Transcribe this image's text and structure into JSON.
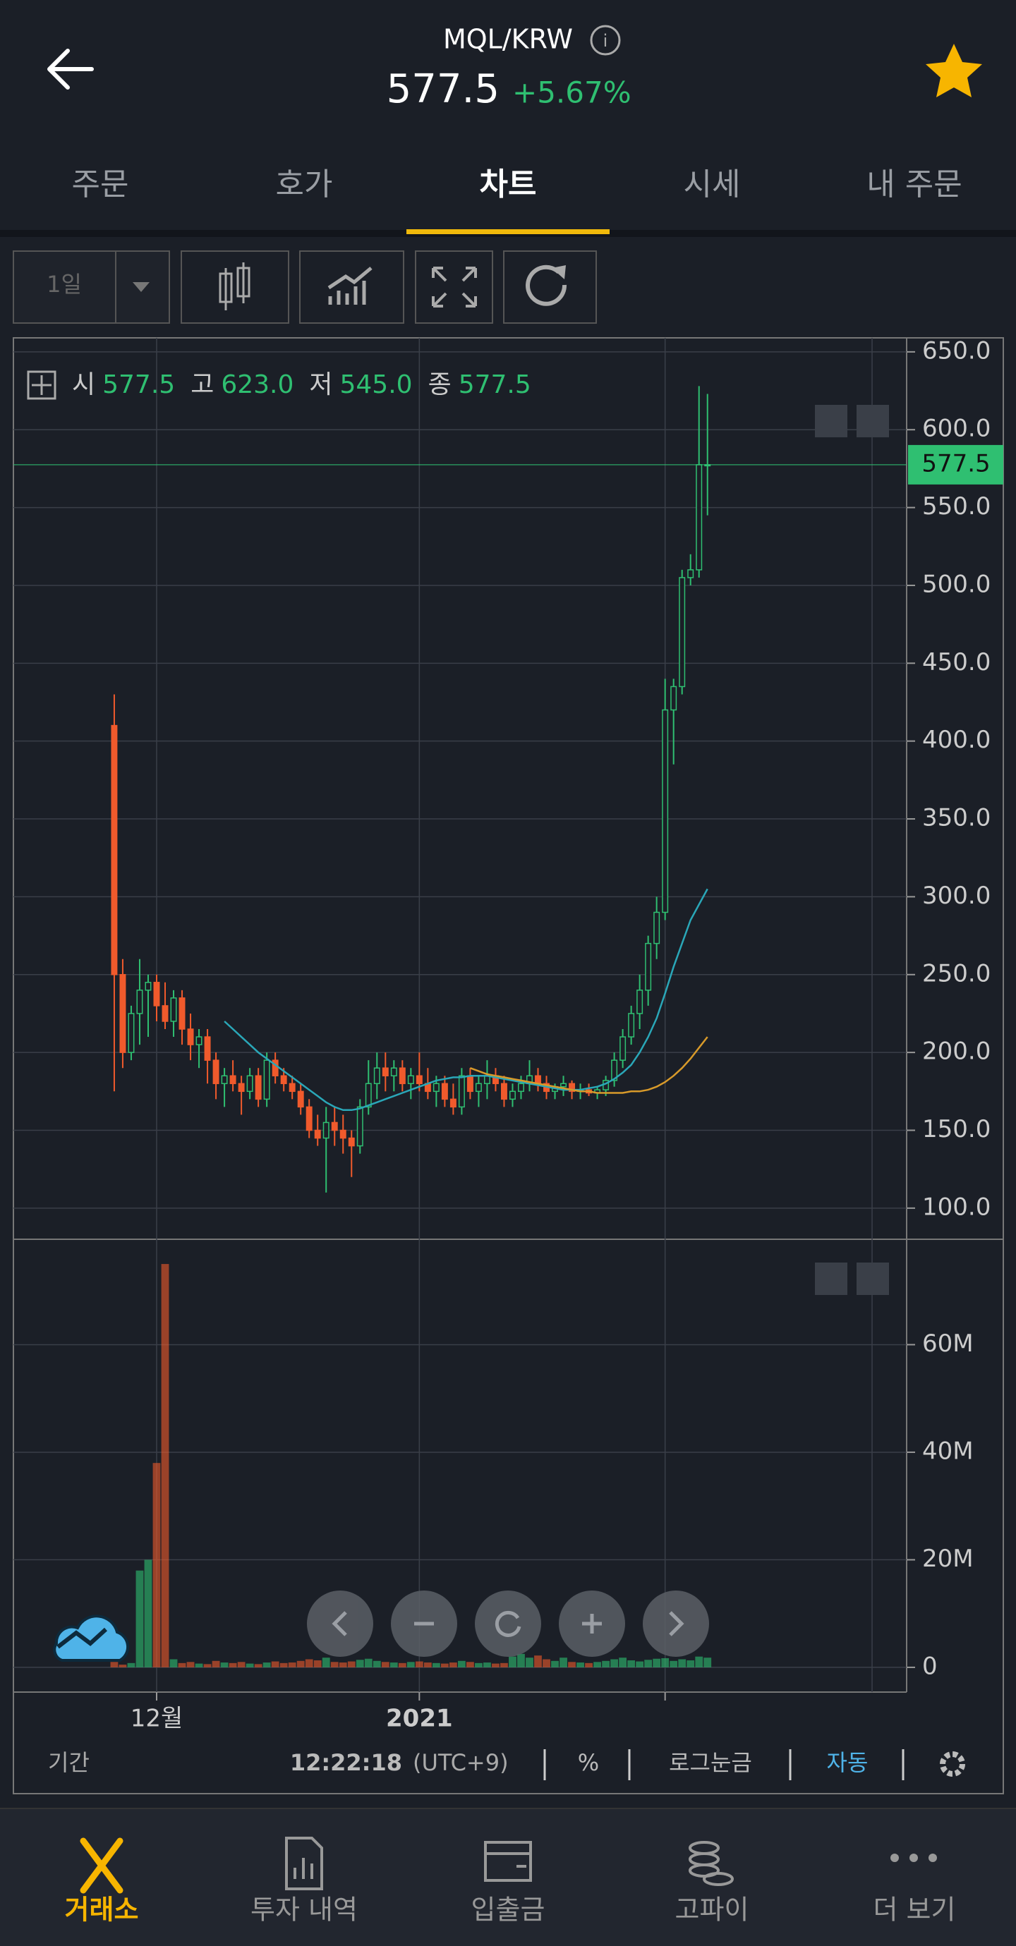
{
  "header": {
    "pair": "MQL/KRW",
    "price": "577.5",
    "change": "+5.67%"
  },
  "tabs": [
    "주문",
    "호가",
    "차트",
    "시세",
    "내 주문"
  ],
  "active_tab": 2,
  "toolbar": {
    "interval": "1일"
  },
  "chart_data": {
    "type": "candlestick",
    "info_labels": [
      "시",
      "고",
      "저",
      "종"
    ],
    "info_values": [
      "577.5",
      "623.0",
      "545.0",
      "577.5"
    ],
    "categories": [
      null,
      null,
      null,
      null,
      null,
      null,
      null,
      null,
      null,
      null,
      null,
      null,
      null,
      null,
      null,
      null,
      null,
      null,
      null,
      null,
      null,
      null,
      null,
      null,
      null,
      null,
      null,
      null,
      null,
      null,
      null,
      null,
      null,
      null,
      null,
      null,
      null,
      null,
      null,
      null,
      null,
      null,
      null,
      null,
      null,
      null,
      null,
      null,
      null,
      null,
      null,
      null,
      null,
      null,
      null,
      null,
      null,
      null,
      null,
      null,
      null,
      null,
      null,
      null,
      null,
      null,
      null,
      null,
      null,
      null,
      null
    ],
    "xlim": [
      -11.9,
      93.5
    ],
    "xticks": [
      {
        "value": 5,
        "label": "12월"
      },
      {
        "value": 36,
        "label": "2021"
      },
      {
        "value": 65,
        "label": null
      }
    ],
    "open": [
      410,
      250,
      200,
      225,
      240,
      245,
      230,
      220,
      235,
      215,
      205,
      210,
      195,
      180,
      185,
      180,
      175,
      185,
      170,
      195,
      185,
      180,
      175,
      165,
      150,
      145,
      155,
      150,
      145,
      140,
      165,
      180,
      190,
      185,
      190,
      180,
      185,
      180,
      175,
      180,
      170,
      165,
      185,
      175,
      180,
      185,
      180,
      170,
      175,
      180,
      185,
      180,
      175,
      178,
      180,
      175,
      176,
      174,
      176,
      182,
      195,
      210,
      225,
      240,
      270,
      290,
      420,
      435,
      505,
      510,
      577.5
    ],
    "high": [
      430,
      260,
      230,
      260,
      250,
      250,
      245,
      240,
      240,
      225,
      215,
      215,
      200,
      190,
      195,
      185,
      190,
      190,
      200,
      200,
      190,
      185,
      180,
      170,
      160,
      165,
      165,
      160,
      150,
      170,
      195,
      200,
      200,
      195,
      195,
      190,
      200,
      190,
      185,
      185,
      180,
      190,
      190,
      185,
      195,
      190,
      185,
      180,
      185,
      195,
      190,
      185,
      180,
      185,
      182,
      180,
      180,
      178,
      185,
      200,
      215,
      230,
      250,
      275,
      300,
      440,
      440,
      510,
      520,
      628,
      623
    ],
    "low": [
      175,
      190,
      195,
      205,
      210,
      220,
      215,
      210,
      205,
      195,
      190,
      180,
      170,
      165,
      175,
      160,
      170,
      165,
      165,
      180,
      175,
      170,
      160,
      145,
      140,
      110,
      140,
      135,
      120,
      135,
      160,
      170,
      175,
      175,
      175,
      170,
      175,
      170,
      165,
      165,
      160,
      160,
      170,
      165,
      170,
      175,
      165,
      165,
      170,
      175,
      175,
      170,
      170,
      172,
      170,
      170,
      172,
      170,
      172,
      178,
      190,
      205,
      215,
      230,
      260,
      285,
      385,
      430,
      500,
      505,
      545
    ],
    "close": [
      250,
      200,
      225,
      240,
      245,
      230,
      220,
      235,
      215,
      205,
      210,
      195,
      180,
      185,
      180,
      175,
      185,
      170,
      195,
      185,
      180,
      175,
      165,
      150,
      145,
      155,
      150,
      145,
      140,
      165,
      180,
      190,
      185,
      190,
      180,
      185,
      180,
      175,
      180,
      170,
      165,
      185,
      175,
      180,
      185,
      180,
      170,
      175,
      180,
      185,
      180,
      175,
      178,
      180,
      175,
      176,
      174,
      176,
      182,
      195,
      210,
      225,
      240,
      270,
      290,
      420,
      435,
      505,
      510,
      577.5,
      577.5
    ],
    "up_color": "#2fbf71",
    "down_color": "#f05a2c",
    "ma": [
      {
        "color": "#2aa7b8",
        "values": [
          null,
          null,
          null,
          null,
          null,
          null,
          null,
          null,
          null,
          null,
          null,
          null,
          null,
          220,
          215,
          210,
          205,
          200,
          196,
          192,
          188,
          184,
          180,
          176,
          172,
          168,
          165,
          163,
          163,
          164,
          166,
          168,
          170,
          172,
          174,
          176,
          178,
          180,
          182,
          183,
          184,
          184,
          185,
          185,
          185,
          184,
          183,
          182,
          181,
          180,
          179,
          178,
          177,
          176,
          176,
          176,
          177,
          178,
          180,
          183,
          187,
          192,
          200,
          210,
          222,
          238,
          255,
          270,
          285,
          295,
          305
        ]
      },
      {
        "color": "#d89a2a",
        "values": [
          null,
          null,
          null,
          null,
          null,
          null,
          null,
          null,
          null,
          null,
          null,
          null,
          null,
          null,
          null,
          null,
          null,
          null,
          null,
          null,
          null,
          null,
          null,
          null,
          null,
          null,
          null,
          null,
          null,
          null,
          null,
          null,
          null,
          null,
          null,
          null,
          null,
          null,
          null,
          null,
          null,
          null,
          190,
          188,
          186,
          185,
          184,
          183,
          182,
          181,
          180,
          179,
          178,
          177,
          176,
          175,
          175,
          174,
          174,
          174,
          174,
          175,
          175,
          176,
          178,
          181,
          185,
          190,
          196,
          203,
          210
        ]
      }
    ],
    "current_price": 577.5,
    "ylim": [
      80,
      659
    ],
    "yticks": [
      {
        "value": 100,
        "label": "100.0"
      },
      {
        "value": 150,
        "label": "150.0"
      },
      {
        "value": 200,
        "label": "200.0"
      },
      {
        "value": 250,
        "label": "250.0"
      },
      {
        "value": 300,
        "label": "300.0"
      },
      {
        "value": 350,
        "label": "350.0"
      },
      {
        "value": 400,
        "label": "400.0"
      },
      {
        "value": 450,
        "label": "450.0"
      },
      {
        "value": 500,
        "label": "500.0"
      },
      {
        "value": 550,
        "label": "550.0"
      },
      {
        "value": 600,
        "label": "600.0"
      },
      {
        "value": 650,
        "label": "650.0"
      }
    ],
    "grid": true,
    "volume": {
      "values": [
        1000000,
        500000,
        800000,
        18000000,
        20000000,
        38000000,
        75000000,
        1500000,
        800000,
        1000000,
        700000,
        600000,
        1200000,
        900000,
        800000,
        1000000,
        700000,
        600000,
        900000,
        1100000,
        800000,
        900000,
        1200000,
        1500000,
        1300000,
        1800000,
        1000000,
        900000,
        1100000,
        1400000,
        1600000,
        1200000,
        1000000,
        900000,
        800000,
        1000000,
        1100000,
        900000,
        800000,
        700000,
        900000,
        1200000,
        1000000,
        800000,
        900000,
        700000,
        800000,
        2000000,
        2500000,
        1800000,
        2200000,
        1500000,
        1200000,
        1800000,
        1000000,
        900000,
        800000,
        1000000,
        1200000,
        1500000,
        1800000,
        1300000,
        1100000,
        1400000,
        1600000,
        1700000,
        1200000,
        1500000,
        1300000,
        2000000,
        1800000
      ],
      "ylim": [
        -4600000,
        79600000
      ],
      "yticks": [
        0,
        {
          "value": 20000000,
          "label": "20M"
        },
        {
          "value": 40000000,
          "label": "40M"
        },
        {
          "value": 60000000,
          "label": "60M"
        }
      ]
    }
  },
  "footer_bar": {
    "period": "기간",
    "time": "12:22:18",
    "tz": "(UTC+9)",
    "percent": "%",
    "log": "로그눈금",
    "auto": "자동"
  },
  "nav": [
    "거래소",
    "투자 내역",
    "입출금",
    "고파이",
    "더 보기"
  ]
}
